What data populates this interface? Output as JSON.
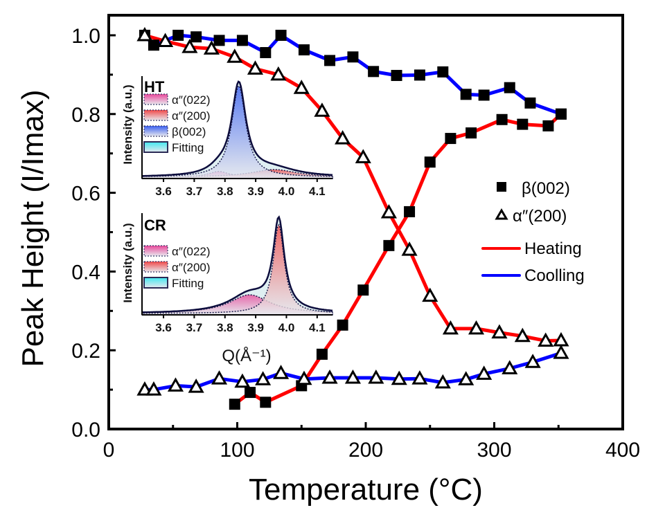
{
  "chart_data": {
    "type": "line",
    "title": "",
    "xlabel": "Temperature (°C)",
    "ylabel": "Peak Height (I/Imax)",
    "xlim": [
      0,
      400
    ],
    "ylim": [
      0.0,
      1.05
    ],
    "xticks": [
      0,
      100,
      200,
      300,
      400
    ],
    "xtick_labels": [
      "0",
      "100",
      "200",
      "300",
      "400"
    ],
    "yticks": [
      0.0,
      0.2,
      0.4,
      0.6,
      0.8,
      1.0
    ],
    "ytick_labels": [
      "0.0",
      "0.2",
      "0.4",
      "0.6",
      "0.8",
      "1.0"
    ],
    "grid": false,
    "legend_position": "right",
    "legend": [
      {
        "label": "β(002)",
        "kind": "marker",
        "marker": "square"
      },
      {
        "label": "α″(200)",
        "kind": "marker",
        "marker": "triangle"
      },
      {
        "label": "Heating",
        "kind": "line",
        "color": "#ff0000"
      },
      {
        "label": "Coolling",
        "kind": "line",
        "color": "#0000ff"
      }
    ],
    "series": [
      {
        "name": "β(002) Heating",
        "marker": "square",
        "line_color": "#ff0000",
        "x": [
          98,
          110,
          122,
          150,
          166,
          182,
          198,
          218,
          234,
          250,
          266,
          282,
          306,
          322,
          342,
          352
        ],
        "y": [
          0.063,
          0.093,
          0.068,
          0.11,
          0.19,
          0.264,
          0.353,
          0.466,
          0.552,
          0.678,
          0.738,
          0.752,
          0.786,
          0.774,
          0.77,
          0.8
        ]
      },
      {
        "name": "β(002) Coolling",
        "marker": "square",
        "line_color": "#0000ff",
        "x": [
          28,
          35,
          54,
          68,
          86,
          104,
          122,
          134,
          152,
          172,
          190,
          206,
          224,
          242,
          260,
          278,
          292,
          312,
          328,
          352
        ],
        "y": [
          1.0,
          0.975,
          1.0,
          0.996,
          0.987,
          0.987,
          0.956,
          1.0,
          0.963,
          0.936,
          0.945,
          0.908,
          0.898,
          0.899,
          0.907,
          0.85,
          0.848,
          0.867,
          0.828,
          0.8
        ]
      },
      {
        "name": "α″(200) Heating",
        "marker": "triangle",
        "line_color": "#ff0000",
        "x": [
          28,
          44,
          63,
          80,
          98,
          114,
          132,
          150,
          166,
          182,
          198,
          218,
          234,
          250,
          266,
          286,
          304,
          322,
          340,
          352
        ],
        "y": [
          1.0,
          0.985,
          0.97,
          0.966,
          0.945,
          0.915,
          0.9,
          0.866,
          0.808,
          0.738,
          0.69,
          0.55,
          0.455,
          0.338,
          0.255,
          0.255,
          0.245,
          0.236,
          0.224,
          0.225
        ]
      },
      {
        "name": "α″(200) Coolling",
        "marker": "triangle",
        "line_color": "#0000ff",
        "x": [
          28,
          35,
          52,
          68,
          86,
          104,
          120,
          134,
          152,
          172,
          190,
          208,
          226,
          242,
          260,
          278,
          292,
          312,
          330,
          352
        ],
        "y": [
          0.1,
          0.1,
          0.11,
          0.107,
          0.128,
          0.12,
          0.126,
          0.142,
          0.127,
          0.13,
          0.13,
          0.13,
          0.127,
          0.128,
          0.118,
          0.126,
          0.14,
          0.154,
          0.17,
          0.193
        ]
      }
    ],
    "insets": [
      {
        "title": "HT",
        "ylabel": "Intensity (a.u.)",
        "xlabel": "",
        "xlim": [
          3.53,
          4.15
        ],
        "xticks": [
          3.6,
          3.7,
          3.8,
          3.9,
          4.0,
          4.1
        ],
        "xtick_labels": [
          "3.6",
          "3.7",
          "3.8",
          "3.9",
          "4.0",
          "4.1"
        ],
        "legend": [
          {
            "label": "α″(022)",
            "color": "#e8489a"
          },
          {
            "label": "α″(200)",
            "color": "#f04848"
          },
          {
            "label": "β(002)",
            "color": "#3a5ff0"
          },
          {
            "label": "Fitting",
            "color": "#40e8f0"
          }
        ],
        "peaks": [
          {
            "name": "α″(022)",
            "center": 3.78,
            "height": 0.06,
            "width": 0.04,
            "color": "#e8489a"
          },
          {
            "name": "α″(200)",
            "center": 3.96,
            "height": 0.08,
            "width": 0.09,
            "color": "#f04848"
          },
          {
            "name": "β(002)",
            "center": 3.845,
            "height": 0.97,
            "width": 0.028,
            "color": "#3a5ff0"
          }
        ]
      },
      {
        "title": "CR",
        "ylabel": "Intensity (a.u.)",
        "xlabel": "Q(Å⁻¹)",
        "xlim": [
          3.53,
          4.15
        ],
        "xticks": [
          3.6,
          3.7,
          3.8,
          3.9,
          4.0,
          4.1
        ],
        "xtick_labels": [
          "3.6",
          "3.7",
          "3.8",
          "3.9",
          "4.0",
          "4.1"
        ],
        "legend": [
          {
            "label": "α″(022)",
            "color": "#e8489a"
          },
          {
            "label": "α″(200)",
            "color": "#f04848"
          },
          {
            "label": "Fitting",
            "color": "#40e8f0"
          }
        ],
        "peaks": [
          {
            "name": "α″(022)",
            "center": 3.88,
            "height": 0.2,
            "width": 0.08,
            "color": "#e8489a"
          },
          {
            "name": "α″(200)",
            "center": 3.975,
            "height": 0.95,
            "width": 0.022,
            "color": "#f04848"
          }
        ]
      }
    ]
  }
}
